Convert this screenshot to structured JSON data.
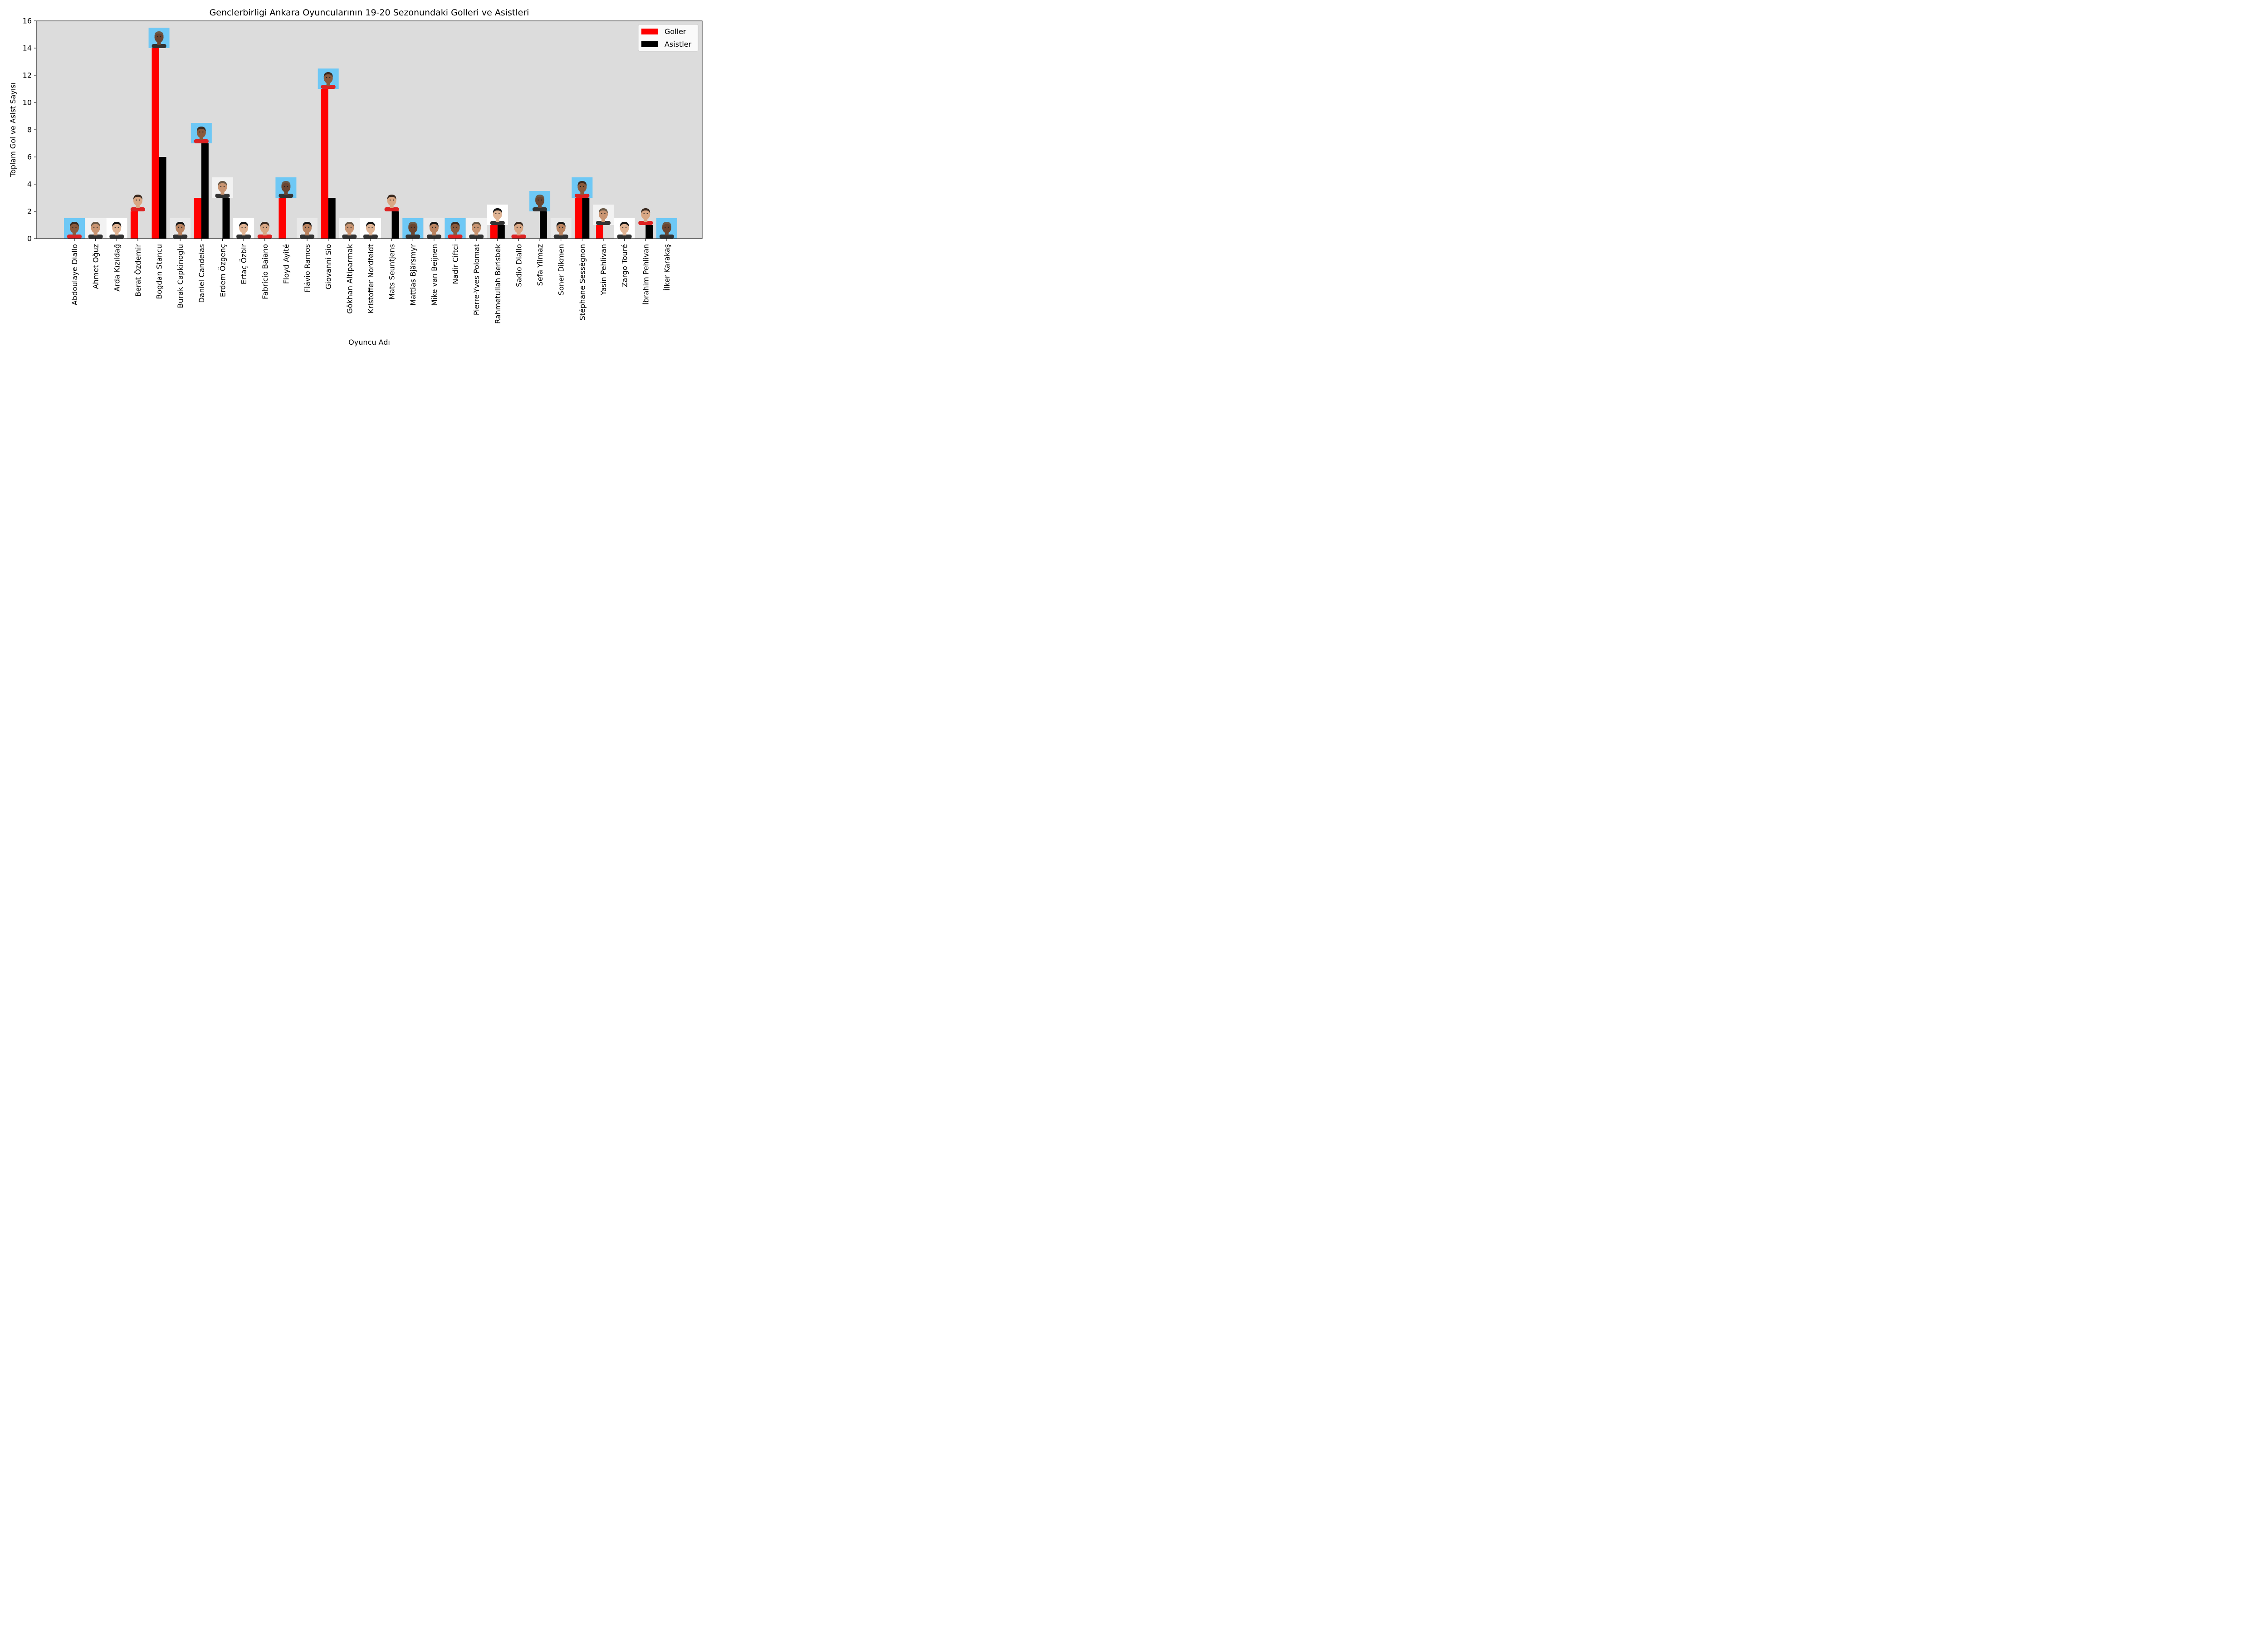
{
  "chart_data": {
    "type": "bar",
    "title": "Genclerbirligi Ankara Oyuncularının 19-20 Sezonundaki Golleri ve Asistleri",
    "xlabel": "Oyuncu Adı",
    "ylabel": "Toplam Gol ve Asist Sayısı",
    "ylim": [
      0,
      16
    ],
    "yticks": [
      0,
      2,
      4,
      6,
      8,
      10,
      12,
      14,
      16
    ],
    "legend_position": "top-right",
    "categories": [
      "Abdoulaye Diallo",
      "Ahmet Oğuz",
      "Arda Kızıldağ",
      "Berat Özdemir",
      "Bogdan Stancu",
      "Burak Capkinoglu",
      "Daniel Candeias",
      "Erdem Özgenç",
      "Ertaç Özbir",
      "Fabrício Baiano",
      "Floyd Ayité",
      "Flávio Ramos",
      "Giovanni Sio",
      "Gökhan Altiparmak",
      "Kristoffer Nordfeldt",
      "Mats Seuntjens",
      "Mattias Bjärsmyr",
      "Mike van Beijnen",
      "Nadir Ciftci",
      "Pierre-Yves Polomat",
      "Rahmetullah Berisbek",
      "Sadio Diallo",
      "Sefa Yilmaz",
      "Soner Dikmen",
      "Stéphane Sessègnon",
      "Yasin Pehlivan",
      "Zargo Touré",
      "İbrahim Pehlivan",
      "İlker Karakaş"
    ],
    "series": [
      {
        "name": "Goller",
        "color": "#ff0000",
        "values": [
          0,
          0,
          0,
          2,
          14,
          0,
          3,
          0,
          0,
          0,
          3,
          0,
          11,
          0,
          0,
          0,
          0,
          0,
          0,
          0,
          1,
          0,
          0,
          0,
          3,
          1,
          0,
          0,
          0
        ]
      },
      {
        "name": "Asistler",
        "color": "#000000",
        "values": [
          0,
          0,
          0,
          0,
          6,
          0,
          7,
          3,
          0,
          0,
          0,
          0,
          3,
          0,
          0,
          2,
          0,
          0,
          0,
          0,
          1,
          0,
          2,
          0,
          3,
          0,
          0,
          1,
          0
        ]
      }
    ],
    "plot_background": "#dcdcdc",
    "photo_background": "#6ec8f5",
    "photo_note": "player headshot thumbnail placed on top of each player's bar group"
  }
}
